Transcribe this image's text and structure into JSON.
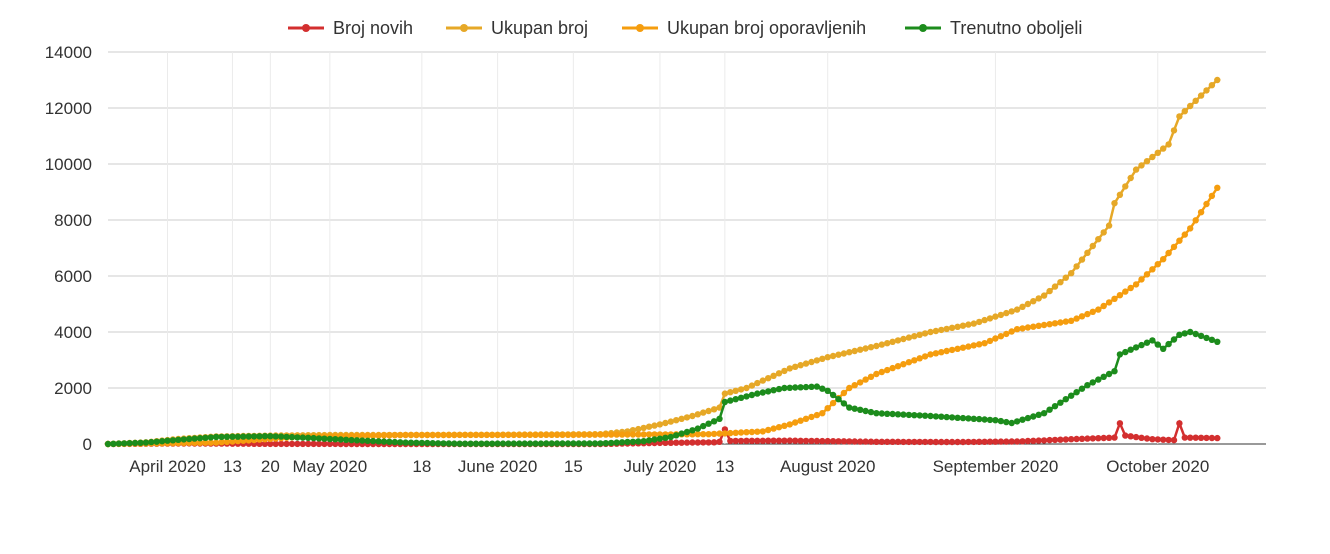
{
  "chart_data": {
    "type": "line",
    "title": "",
    "xlabel": "",
    "ylabel": "",
    "ylim": [
      0,
      14000
    ],
    "yticks": [
      "0",
      "2000",
      "4000",
      "6000",
      "8000",
      "10000",
      "12000",
      "14000"
    ],
    "grid": true,
    "legend_position": "top",
    "x_start": "2020-03-21",
    "x_end": "2020-10-21",
    "xticks": [
      {
        "date": "2020-04-01",
        "label": "April 2020"
      },
      {
        "date": "2020-04-13",
        "label": "13"
      },
      {
        "date": "2020-04-20",
        "label": "20"
      },
      {
        "date": "2020-05-01",
        "label": "May 2020"
      },
      {
        "date": "2020-05-18",
        "label": "18"
      },
      {
        "date": "2020-06-01",
        "label": "June 2020"
      },
      {
        "date": "2020-06-15",
        "label": "15"
      },
      {
        "date": "2020-07-01",
        "label": "July 2020"
      },
      {
        "date": "2020-07-13",
        "label": "13"
      },
      {
        "date": "2020-08-01",
        "label": "August 2020"
      },
      {
        "date": "2020-09-01",
        "label": "September 2020"
      },
      {
        "date": "2020-10-01",
        "label": "October 2020"
      }
    ],
    "series": [
      {
        "name": "Broj novih",
        "color": "#d32f2f",
        "points": [
          [
            "2020-03-21",
            0
          ],
          [
            "2020-04-05",
            20
          ],
          [
            "2020-04-20",
            5
          ],
          [
            "2020-05-10",
            0
          ],
          [
            "2020-06-20",
            0
          ],
          [
            "2020-07-01",
            40
          ],
          [
            "2020-07-11",
            60
          ],
          [
            "2020-07-12",
            80
          ],
          [
            "2020-07-13",
            520
          ],
          [
            "2020-07-14",
            110
          ],
          [
            "2020-07-25",
            120
          ],
          [
            "2020-08-10",
            80
          ],
          [
            "2020-08-25",
            70
          ],
          [
            "2020-09-05",
            90
          ],
          [
            "2020-09-15",
            170
          ],
          [
            "2020-09-23",
            230
          ],
          [
            "2020-09-24",
            740
          ],
          [
            "2020-09-25",
            300
          ],
          [
            "2020-09-30",
            170
          ],
          [
            "2020-10-04",
            140
          ],
          [
            "2020-10-05",
            740
          ],
          [
            "2020-10-06",
            230
          ],
          [
            "2020-10-12",
            210
          ]
        ]
      },
      {
        "name": "Ukupan broj",
        "color": "#e6a827",
        "points": [
          [
            "2020-03-21",
            0
          ],
          [
            "2020-03-28",
            60
          ],
          [
            "2020-04-03",
            180
          ],
          [
            "2020-04-10",
            270
          ],
          [
            "2020-04-20",
            300
          ],
          [
            "2020-05-01",
            320
          ],
          [
            "2020-06-01",
            330
          ],
          [
            "2020-06-20",
            350
          ],
          [
            "2020-06-25",
            450
          ],
          [
            "2020-07-01",
            700
          ],
          [
            "2020-07-07",
            1000
          ],
          [
            "2020-07-12",
            1300
          ],
          [
            "2020-07-13",
            1800
          ],
          [
            "2020-07-17",
            2000
          ],
          [
            "2020-07-25",
            2700
          ],
          [
            "2020-08-01",
            3100
          ],
          [
            "2020-08-10",
            3500
          ],
          [
            "2020-08-20",
            4000
          ],
          [
            "2020-08-28",
            4300
          ],
          [
            "2020-09-05",
            4800
          ],
          [
            "2020-09-10",
            5300
          ],
          [
            "2020-09-15",
            6100
          ],
          [
            "2020-09-22",
            7800
          ],
          [
            "2020-09-23",
            8600
          ],
          [
            "2020-09-27",
            9800
          ],
          [
            "2020-10-03",
            10700
          ],
          [
            "2020-10-05",
            11700
          ],
          [
            "2020-10-12",
            13000
          ]
        ]
      },
      {
        "name": "Ukupan broj oporavljenih",
        "color": "#f59d0e",
        "points": [
          [
            "2020-03-21",
            0
          ],
          [
            "2020-04-10",
            50
          ],
          [
            "2020-04-25",
            250
          ],
          [
            "2020-05-15",
            320
          ],
          [
            "2020-06-15",
            330
          ],
          [
            "2020-07-10",
            350
          ],
          [
            "2020-07-20",
            450
          ],
          [
            "2020-07-25",
            700
          ],
          [
            "2020-07-31",
            1100
          ],
          [
            "2020-08-05",
            2000
          ],
          [
            "2020-08-10",
            2500
          ],
          [
            "2020-08-20",
            3200
          ],
          [
            "2020-08-30",
            3600
          ],
          [
            "2020-09-05",
            4100
          ],
          [
            "2020-09-15",
            4400
          ],
          [
            "2020-09-20",
            4800
          ],
          [
            "2020-09-27",
            5700
          ],
          [
            "2020-10-02",
            6600
          ],
          [
            "2020-10-07",
            7700
          ],
          [
            "2020-10-12",
            9150
          ]
        ]
      },
      {
        "name": "Trenutno oboljeli",
        "color": "#1c8c1c",
        "points": [
          [
            "2020-03-21",
            0
          ],
          [
            "2020-03-28",
            50
          ],
          [
            "2020-04-03",
            150
          ],
          [
            "2020-04-10",
            250
          ],
          [
            "2020-04-20",
            280
          ],
          [
            "2020-04-27",
            220
          ],
          [
            "2020-05-05",
            140
          ],
          [
            "2020-05-15",
            50
          ],
          [
            "2020-05-25",
            10
          ],
          [
            "2020-06-20",
            20
          ],
          [
            "2020-06-28",
            100
          ],
          [
            "2020-07-03",
            250
          ],
          [
            "2020-07-08",
            550
          ],
          [
            "2020-07-12",
            900
          ],
          [
            "2020-07-13",
            1500
          ],
          [
            "2020-07-19",
            1800
          ],
          [
            "2020-07-24",
            2000
          ],
          [
            "2020-07-30",
            2050
          ],
          [
            "2020-08-01",
            1900
          ],
          [
            "2020-08-05",
            1300
          ],
          [
            "2020-08-10",
            1100
          ],
          [
            "2020-08-20",
            1000
          ],
          [
            "2020-09-01",
            850
          ],
          [
            "2020-09-04",
            750
          ],
          [
            "2020-09-10",
            1100
          ],
          [
            "2020-09-18",
            2100
          ],
          [
            "2020-09-23",
            2600
          ],
          [
            "2020-09-24",
            3200
          ],
          [
            "2020-09-30",
            3700
          ],
          [
            "2020-10-02",
            3400
          ],
          [
            "2020-10-05",
            3900
          ],
          [
            "2020-10-07",
            4000
          ],
          [
            "2020-10-12",
            3650
          ]
        ]
      }
    ]
  }
}
